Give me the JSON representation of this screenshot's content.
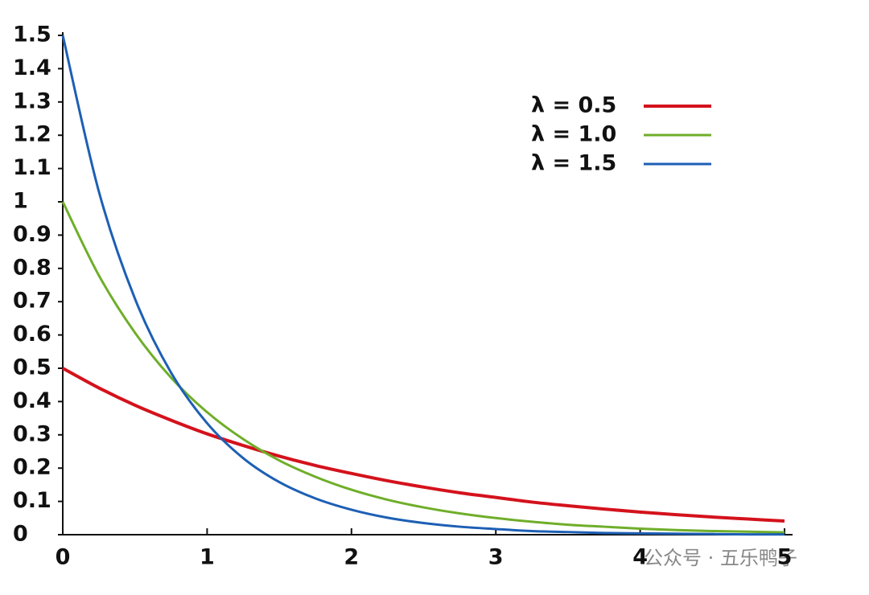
{
  "chart_data": {
    "type": "line",
    "x": [
      0,
      0.25,
      0.5,
      0.75,
      1,
      1.25,
      1.5,
      1.75,
      2,
      2.25,
      2.5,
      2.75,
      3,
      3.25,
      3.5,
      3.75,
      4,
      4.25,
      4.5,
      4.75,
      5
    ],
    "series": [
      {
        "name": "λ = 0.5",
        "color": "#d4121c",
        "values": [
          0.5,
          0.441,
          0.389,
          0.344,
          0.303,
          0.268,
          0.236,
          0.208,
          0.184,
          0.162,
          0.143,
          0.126,
          0.112,
          0.098,
          0.087,
          0.077,
          0.068,
          0.06,
          0.053,
          0.047,
          0.041
        ]
      },
      {
        "name": "λ = 1.0",
        "color": "#6fae2a",
        "values": [
          1,
          0.779,
          0.607,
          0.472,
          0.368,
          0.287,
          0.223,
          0.174,
          0.135,
          0.105,
          0.082,
          0.064,
          0.05,
          0.039,
          0.03,
          0.024,
          0.018,
          0.014,
          0.011,
          0.009,
          0.007
        ]
      },
      {
        "name": "λ = 1.5",
        "color": "#1d5fb4",
        "values": [
          1.5,
          1.031,
          0.709,
          0.487,
          0.335,
          0.23,
          0.158,
          0.109,
          0.075,
          0.051,
          0.035,
          0.024,
          0.017,
          0.011,
          0.008,
          0.005,
          0.004,
          0.003,
          0.002,
          0.001,
          0.001
        ]
      }
    ],
    "xlim": [
      0,
      5
    ],
    "xticks": [
      0,
      1,
      2,
      3,
      4,
      5
    ],
    "ylim": [
      0,
      1.5
    ],
    "yticks": [
      0,
      0.1,
      0.2,
      0.3,
      0.4,
      0.5,
      0.6,
      0.7,
      0.8,
      0.9,
      1,
      1.1,
      1.2,
      1.3,
      1.4,
      1.5
    ],
    "grid": false,
    "legend": "upper right",
    "watermark": "公众号 · 五乐鸭子"
  }
}
